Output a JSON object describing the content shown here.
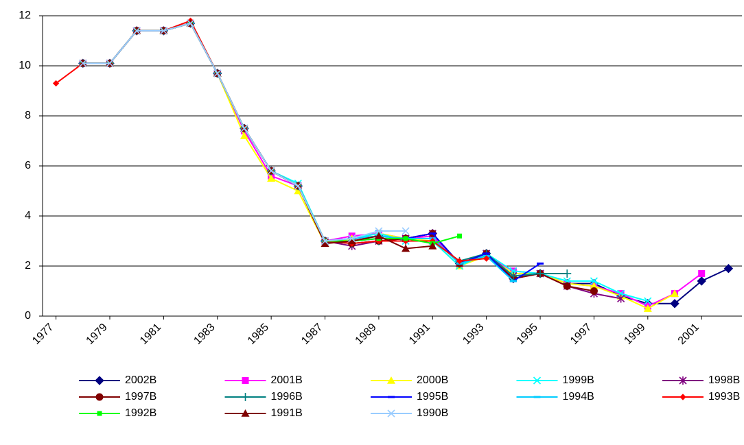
{
  "chart_data": {
    "type": "line",
    "x": [
      1977,
      1978,
      1979,
      1980,
      1981,
      1982,
      1983,
      1984,
      1985,
      1986,
      1987,
      1988,
      1989,
      1990,
      1991,
      1992,
      1993,
      1994,
      1995,
      1996,
      1997,
      1998,
      1999,
      2000,
      2001,
      2002
    ],
    "xlim": [
      1976.5,
      2002.5
    ],
    "xticks": [
      1977,
      1979,
      1981,
      1983,
      1985,
      1987,
      1989,
      1991,
      1993,
      1995,
      1997,
      1999,
      2001
    ],
    "ylim": [
      0,
      12
    ],
    "yticks": [
      0,
      2,
      4,
      6,
      8,
      10,
      12
    ],
    "grid": true,
    "series": [
      {
        "name": "2002B",
        "color": "#000080",
        "marker": "diamond",
        "values": [
          null,
          10.1,
          10.1,
          11.4,
          11.4,
          11.7,
          9.7,
          7.5,
          5.8,
          5.2,
          3.0,
          3.1,
          3.2,
          3.1,
          3.3,
          2.1,
          2.5,
          1.5,
          1.7,
          1.3,
          1.3,
          0.8,
          0.5,
          0.5,
          1.4,
          1.9
        ]
      },
      {
        "name": "2001B",
        "color": "#ff00ff",
        "marker": "square",
        "values": [
          null,
          10.1,
          10.1,
          11.4,
          11.4,
          11.7,
          9.7,
          7.4,
          5.6,
          5.2,
          3.0,
          3.2,
          3.3,
          3.1,
          3.2,
          2.1,
          2.4,
          1.8,
          1.7,
          1.3,
          1.2,
          0.9,
          0.4,
          0.9,
          1.7,
          null
        ]
      },
      {
        "name": "2000B",
        "color": "#ffff00",
        "marker": "triangle",
        "values": [
          null,
          10.1,
          10.1,
          11.4,
          11.4,
          11.7,
          9.7,
          7.2,
          5.5,
          5.0,
          2.9,
          3.1,
          3.3,
          3.1,
          3.0,
          2.0,
          2.4,
          1.7,
          1.7,
          1.3,
          1.2,
          0.8,
          0.3,
          0.9,
          null,
          null
        ]
      },
      {
        "name": "1999B",
        "color": "#00ffff",
        "marker": "x",
        "values": [
          null,
          10.1,
          10.1,
          11.4,
          11.4,
          11.7,
          9.7,
          7.5,
          5.8,
          5.3,
          3.0,
          3.1,
          3.3,
          3.0,
          3.0,
          2.0,
          2.5,
          1.8,
          1.7,
          1.4,
          1.4,
          0.9,
          0.6,
          null,
          null,
          null
        ]
      },
      {
        "name": "1998B",
        "color": "#800080",
        "marker": "star",
        "values": [
          null,
          10.1,
          10.1,
          11.4,
          11.4,
          11.7,
          9.7,
          7.5,
          5.8,
          5.2,
          3.0,
          2.8,
          3.0,
          3.1,
          3.3,
          2.1,
          2.5,
          1.6,
          1.7,
          1.2,
          0.9,
          0.7,
          null,
          null,
          null,
          null
        ]
      },
      {
        "name": "1997B",
        "color": "#800000",
        "marker": "circle",
        "values": [
          null,
          10.1,
          10.1,
          11.4,
          11.4,
          11.7,
          9.7,
          7.5,
          5.8,
          5.2,
          3.0,
          2.9,
          3.0,
          3.1,
          3.3,
          2.1,
          2.5,
          1.5,
          1.7,
          1.2,
          1.0,
          null,
          null,
          null,
          null,
          null
        ]
      },
      {
        "name": "1996B",
        "color": "#008080",
        "marker": "plus",
        "values": [
          null,
          10.1,
          10.1,
          11.4,
          11.4,
          11.7,
          9.7,
          7.5,
          5.8,
          5.2,
          3.0,
          2.9,
          3.0,
          3.0,
          3.0,
          2.2,
          2.5,
          1.6,
          1.7,
          1.7,
          null,
          null,
          null,
          null,
          null,
          null
        ]
      },
      {
        "name": "1995B",
        "color": "#0000ff",
        "marker": "dash",
        "values": [
          null,
          10.1,
          10.1,
          11.4,
          11.4,
          11.7,
          9.7,
          7.5,
          5.8,
          5.2,
          3.0,
          3.0,
          3.1,
          3.1,
          3.3,
          2.1,
          2.5,
          1.4,
          2.1,
          null,
          null,
          null,
          null,
          null,
          null,
          null
        ]
      },
      {
        "name": "1994B",
        "color": "#00ccff",
        "marker": "dash",
        "values": [
          null,
          10.1,
          10.1,
          11.4,
          11.4,
          11.7,
          9.7,
          7.5,
          5.8,
          5.2,
          3.0,
          3.1,
          3.2,
          3.1,
          3.1,
          2.1,
          2.4,
          1.4,
          null,
          null,
          null,
          null,
          null,
          null,
          null,
          null
        ]
      },
      {
        "name": "1993B",
        "color": "#ff0000",
        "marker": "smalldiamond",
        "values": [
          9.3,
          10.1,
          10.1,
          11.4,
          11.4,
          11.8,
          9.7,
          7.5,
          5.8,
          5.2,
          3.0,
          2.9,
          3.0,
          3.0,
          3.0,
          2.2,
          2.3,
          null,
          null,
          null,
          null,
          null,
          null,
          null,
          null,
          null
        ]
      },
      {
        "name": "1992B",
        "color": "#00ff00",
        "marker": "smallsquare",
        "values": [
          null,
          10.1,
          10.1,
          11.4,
          11.4,
          11.7,
          9.7,
          7.5,
          5.8,
          5.2,
          3.0,
          3.0,
          3.1,
          3.1,
          2.9,
          3.2,
          null,
          null,
          null,
          null,
          null,
          null,
          null,
          null,
          null,
          null
        ]
      },
      {
        "name": "1991B",
        "color": "#800000",
        "marker": "triangle",
        "values": [
          null,
          10.1,
          10.1,
          11.4,
          11.4,
          11.7,
          9.7,
          7.5,
          5.8,
          5.2,
          2.9,
          3.0,
          3.2,
          2.7,
          2.8,
          null,
          null,
          null,
          null,
          null,
          null,
          null,
          null,
          null,
          null,
          null
        ]
      },
      {
        "name": "1990B",
        "color": "#99ccff",
        "marker": "x",
        "values": [
          null,
          10.1,
          10.1,
          11.4,
          11.4,
          11.7,
          9.7,
          7.5,
          5.8,
          5.2,
          3.0,
          3.1,
          3.4,
          3.4,
          null,
          null,
          null,
          null,
          null,
          null,
          null,
          null,
          null,
          null,
          null,
          null
        ]
      }
    ]
  }
}
